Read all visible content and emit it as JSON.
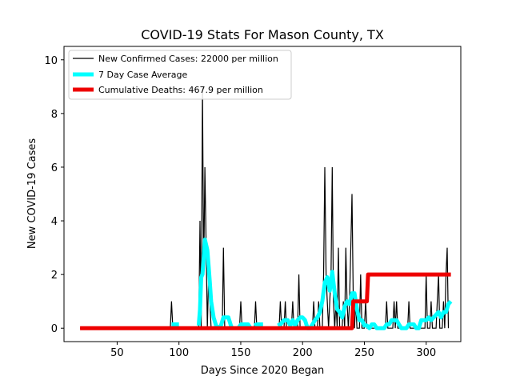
{
  "chart_data": {
    "type": "line",
    "title": "COVID-19 Stats For Mason County, TX",
    "xlabel": "Days Since 2020 Began",
    "ylabel": "New COVID-19 Cases",
    "xlim": [
      7,
      328
    ],
    "ylim": [
      -0.5,
      10.5
    ],
    "xticks": [
      50,
      100,
      150,
      200,
      250,
      300
    ],
    "yticks": [
      0,
      2,
      4,
      6,
      8,
      10
    ],
    "grid": false,
    "legend_position": "top-left",
    "series": [
      {
        "name": "New Confirmed Cases: 22000 per million",
        "color": "#000000",
        "style": "thin-line",
        "points": [
          [
            20,
            0
          ],
          [
            93,
            0
          ],
          [
            94,
            1
          ],
          [
            95,
            0
          ],
          [
            116,
            0
          ],
          [
            117,
            4
          ],
          [
            118,
            0
          ],
          [
            119,
            9
          ],
          [
            120,
            2
          ],
          [
            121,
            6
          ],
          [
            122,
            3
          ],
          [
            123,
            0
          ],
          [
            124,
            2
          ],
          [
            125,
            1
          ],
          [
            126,
            0
          ],
          [
            135,
            0
          ],
          [
            136,
            3
          ],
          [
            137,
            0
          ],
          [
            149,
            0
          ],
          [
            150,
            1
          ],
          [
            151,
            0
          ],
          [
            161,
            0
          ],
          [
            162,
            1
          ],
          [
            163,
            0
          ],
          [
            181,
            0
          ],
          [
            182,
            1
          ],
          [
            183,
            0
          ],
          [
            185,
            0
          ],
          [
            186,
            1
          ],
          [
            187,
            0
          ],
          [
            191,
            0
          ],
          [
            192,
            1
          ],
          [
            193,
            0
          ],
          [
            196,
            0
          ],
          [
            197,
            2
          ],
          [
            198,
            0
          ],
          [
            208,
            0
          ],
          [
            209,
            1
          ],
          [
            210,
            0
          ],
          [
            212,
            0
          ],
          [
            213,
            1
          ],
          [
            214,
            0
          ],
          [
            216,
            0
          ],
          [
            217,
            2
          ],
          [
            218,
            6
          ],
          [
            219,
            2
          ],
          [
            220,
            1
          ],
          [
            221,
            0
          ],
          [
            222,
            1
          ],
          [
            223,
            2
          ],
          [
            224,
            6
          ],
          [
            225,
            1
          ],
          [
            226,
            0
          ],
          [
            227,
            1
          ],
          [
            228,
            0
          ],
          [
            229,
            3
          ],
          [
            230,
            0
          ],
          [
            232,
            0
          ],
          [
            233,
            1
          ],
          [
            234,
            0
          ],
          [
            235,
            3
          ],
          [
            236,
            1
          ],
          [
            237,
            0
          ],
          [
            238,
            1
          ],
          [
            239,
            3
          ],
          [
            240,
            5
          ],
          [
            241,
            1
          ],
          [
            242,
            0
          ],
          [
            243,
            1
          ],
          [
            244,
            0
          ],
          [
            246,
            0
          ],
          [
            247,
            2
          ],
          [
            248,
            0
          ],
          [
            250,
            0
          ],
          [
            251,
            1
          ],
          [
            252,
            0
          ],
          [
            267,
            0
          ],
          [
            268,
            1
          ],
          [
            269,
            0
          ],
          [
            273,
            0
          ],
          [
            274,
            1
          ],
          [
            275,
            0
          ],
          [
            276,
            1
          ],
          [
            277,
            0
          ],
          [
            285,
            0
          ],
          [
            286,
            1
          ],
          [
            287,
            0
          ],
          [
            299,
            0
          ],
          [
            300,
            2
          ],
          [
            301,
            0
          ],
          [
            303,
            0
          ],
          [
            304,
            1
          ],
          [
            305,
            0
          ],
          [
            308,
            0
          ],
          [
            309,
            1
          ],
          [
            310,
            2
          ],
          [
            311,
            0
          ],
          [
            313,
            0
          ],
          [
            314,
            1
          ],
          [
            315,
            0
          ],
          [
            316,
            2
          ],
          [
            317,
            3
          ],
          [
            318,
            0
          ]
        ]
      },
      {
        "name": "7 Day Case Average",
        "color": "#00ffff",
        "style": "thick-line",
        "segments": [
          [
            [
              94,
              0.14
            ],
            [
              100,
              0.14
            ]
          ],
          [
            [
              116,
              0.1
            ],
            [
              117,
              0.7
            ],
            [
              118,
              1.9
            ],
            [
              119,
              2.0
            ],
            [
              120,
              2.6
            ],
            [
              121,
              3.3
            ],
            [
              122,
              3.1
            ],
            [
              123,
              2.9
            ],
            [
              124,
              2.3
            ],
            [
              125,
              1.7
            ],
            [
              126,
              1.0
            ],
            [
              128,
              0.4
            ],
            [
              130,
              0.1
            ],
            [
              132,
              0.0
            ],
            [
              134,
              0.1
            ],
            [
              136,
              0.4
            ],
            [
              140,
              0.4
            ],
            [
              142,
              0.1
            ],
            [
              143,
              0.0
            ]
          ],
          [
            [
              148,
              0.0
            ],
            [
              150,
              0.14
            ],
            [
              156,
              0.14
            ],
            [
              158,
              0.0
            ]
          ],
          [
            [
              161,
              0.1
            ],
            [
              163,
              0.14
            ],
            [
              168,
              0.14
            ]
          ],
          [
            [
              180,
              0.1
            ],
            [
              182,
              0.14
            ],
            [
              185,
              0.3
            ],
            [
              188,
              0.3
            ],
            [
              190,
              0.1
            ],
            [
              192,
              0.3
            ],
            [
              194,
              0.1
            ],
            [
              196,
              0.3
            ],
            [
              198,
              0.4
            ],
            [
              200,
              0.4
            ],
            [
              202,
              0.3
            ],
            [
              204,
              0.0
            ],
            [
              206,
              0.0
            ],
            [
              208,
              0.14
            ],
            [
              210,
              0.3
            ],
            [
              212,
              0.4
            ],
            [
              214,
              0.6
            ],
            [
              216,
              1.0
            ],
            [
              218,
              1.7
            ],
            [
              220,
              1.9
            ],
            [
              222,
              1.4
            ],
            [
              224,
              2.1
            ],
            [
              226,
              1.3
            ],
            [
              228,
              0.7
            ],
            [
              230,
              0.6
            ],
            [
              232,
              0.4
            ],
            [
              234,
              0.8
            ],
            [
              236,
              1.0
            ],
            [
              238,
              0.9
            ],
            [
              240,
              1.3
            ],
            [
              242,
              1.3
            ],
            [
              244,
              0.7
            ],
            [
              246,
              0.3
            ],
            [
              248,
              0.3
            ],
            [
              250,
              0.1
            ],
            [
              252,
              0.1
            ],
            [
              254,
              0.0
            ],
            [
              256,
              0.14
            ],
            [
              258,
              0.14
            ],
            [
              260,
              0.0
            ],
            [
              262,
              0.0
            ],
            [
              266,
              0.0
            ],
            [
              268,
              0.14
            ],
            [
              270,
              0.14
            ],
            [
              272,
              0.3
            ],
            [
              274,
              0.3
            ],
            [
              276,
              0.3
            ],
            [
              278,
              0.14
            ],
            [
              280,
              0.0
            ],
            [
              284,
              0.0
            ],
            [
              286,
              0.14
            ],
            [
              290,
              0.14
            ],
            [
              292,
              0.0
            ],
            [
              294,
              0.0
            ],
            [
              296,
              0.3
            ],
            [
              300,
              0.3
            ],
            [
              302,
              0.4
            ],
            [
              304,
              0.3
            ],
            [
              306,
              0.4
            ],
            [
              308,
              0.5
            ],
            [
              310,
              0.6
            ],
            [
              312,
              0.4
            ],
            [
              314,
              0.6
            ],
            [
              316,
              0.6
            ],
            [
              318,
              0.9
            ],
            [
              320,
              1.0
            ]
          ]
        ]
      },
      {
        "name": "Cumulative Deaths: 467.9 per million",
        "color": "#ee0000",
        "style": "thick-line",
        "points": [
          [
            20,
            0
          ],
          [
            240,
            0
          ],
          [
            241,
            1
          ],
          [
            252,
            1
          ],
          [
            253,
            2
          ],
          [
            320,
            2
          ]
        ]
      }
    ]
  }
}
